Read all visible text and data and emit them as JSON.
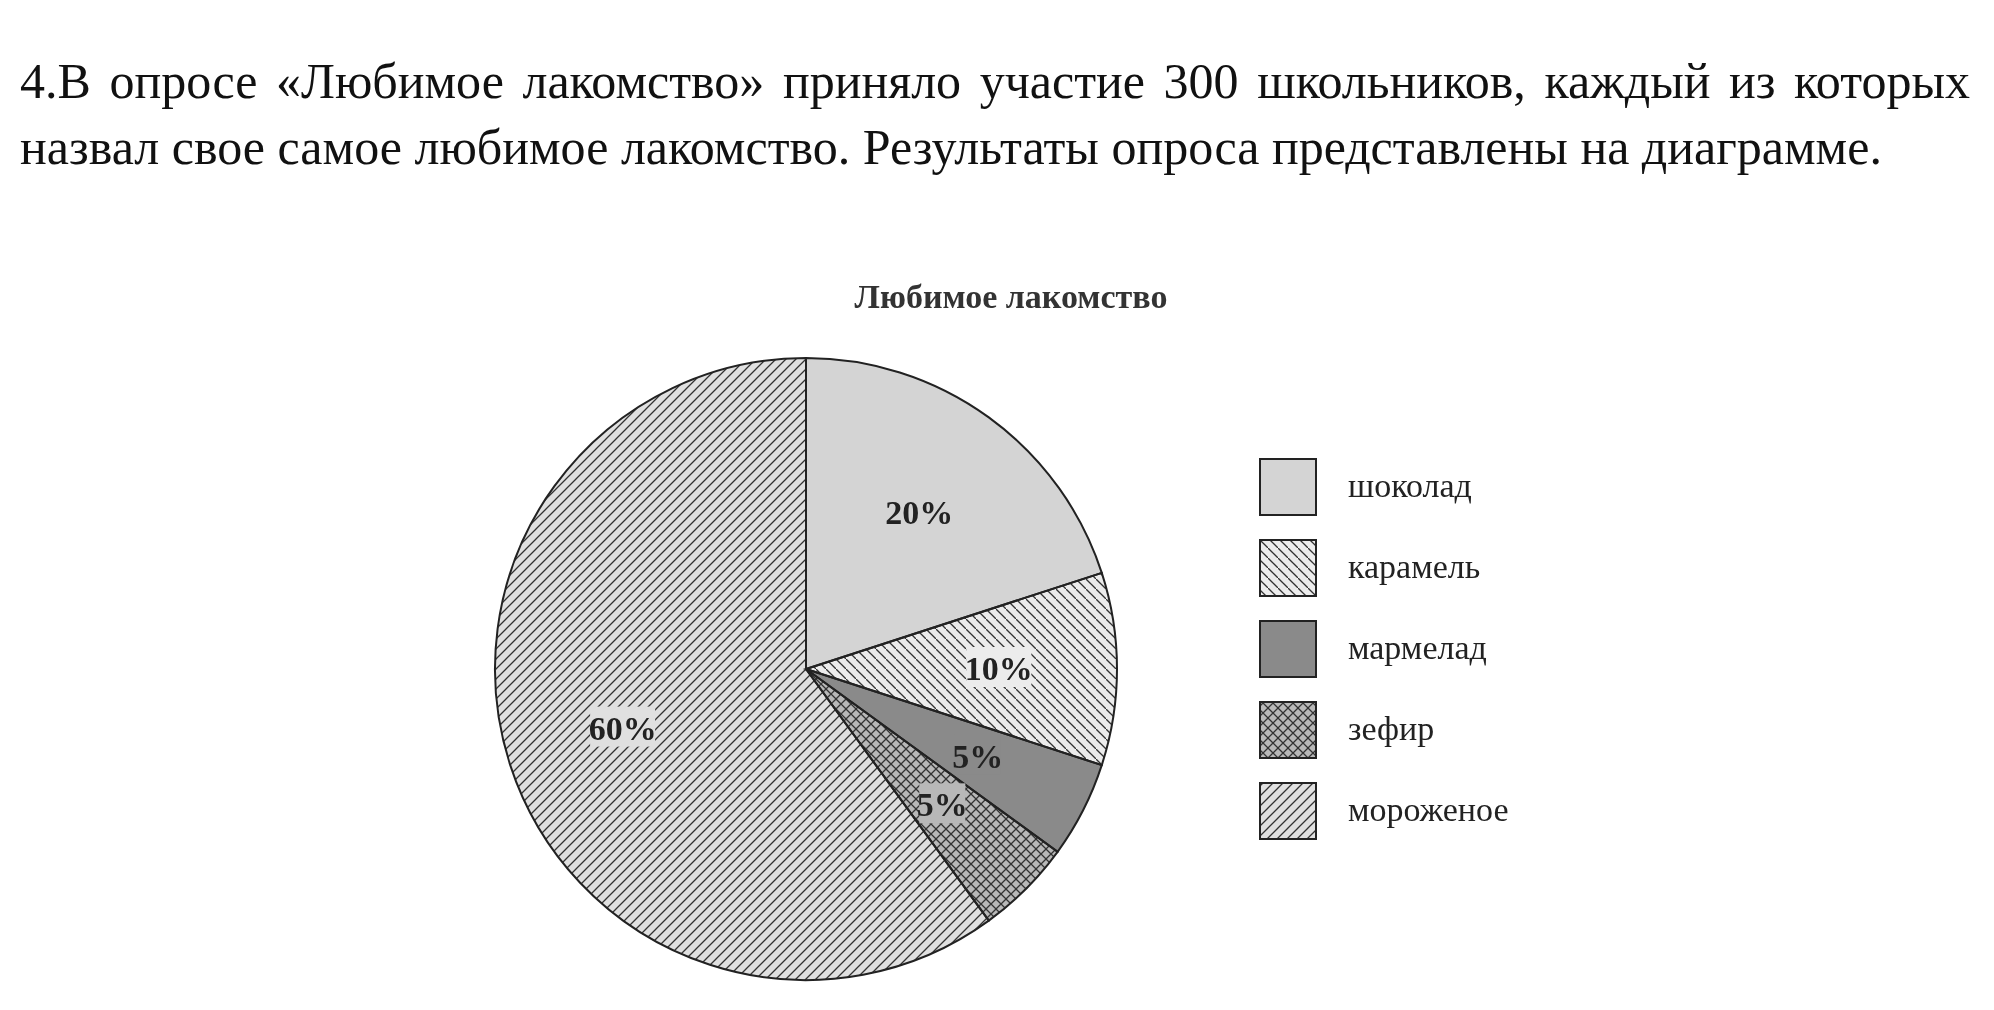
{
  "chart_data": {
    "type": "pie",
    "title": "Любимое лакомство",
    "annotations": [
      "4.В опросе «Любимое лакомство» приняло участие 300 школьников, каждый из которых назвал свое самое любимое лакомство. Результаты опроса представлены на диаграмме."
    ],
    "categories": [
      "шоколад",
      "карамель",
      "мармелад",
      "зефир",
      "мороженое"
    ],
    "values": [
      20,
      10,
      5,
      5,
      60
    ],
    "value_labels": [
      "20%",
      "10%",
      "5%",
      "5%",
      "60%"
    ],
    "colors": [
      "#d4d4d4",
      "#ececec",
      "#8a8a8a",
      "#b8b8b8",
      "#e0e0e0"
    ],
    "legend": "right"
  }
}
